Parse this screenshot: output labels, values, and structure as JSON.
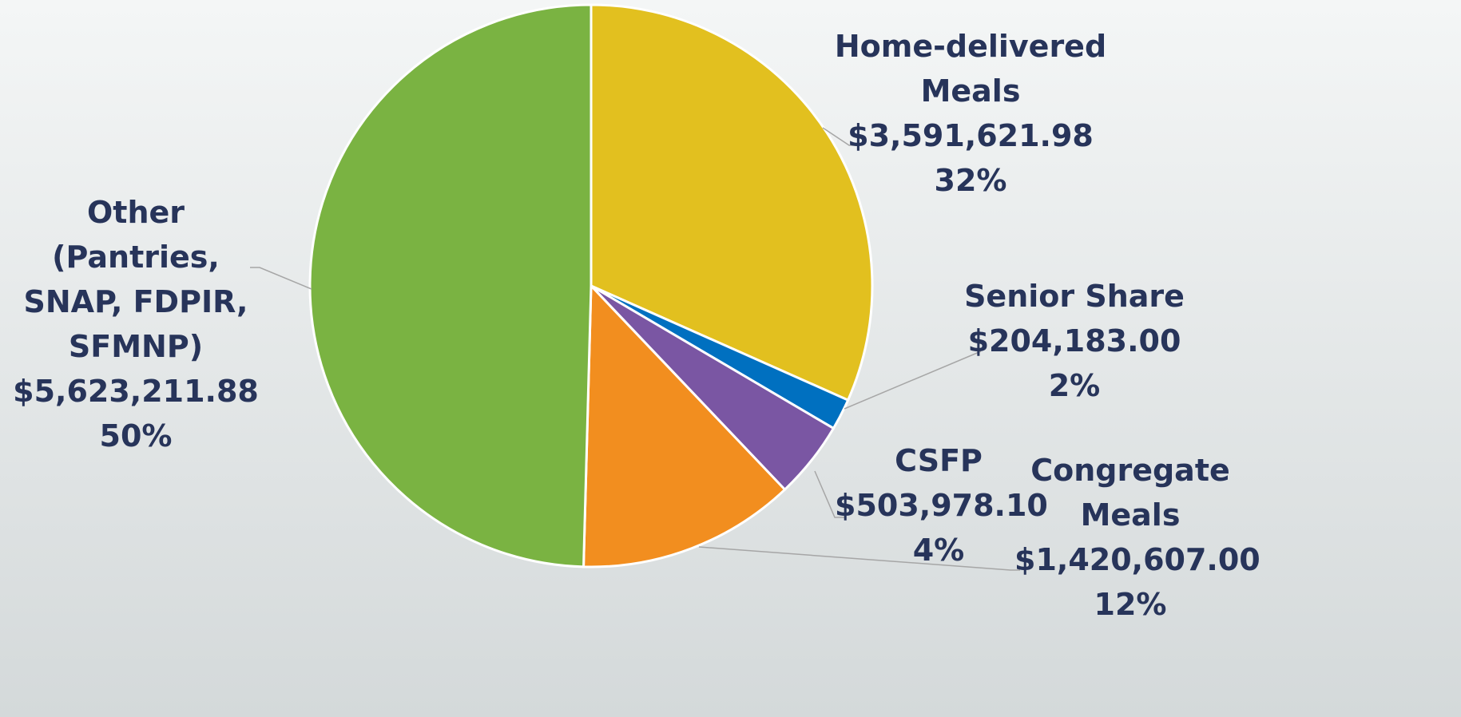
{
  "chart_data": {
    "type": "pie",
    "categories": [
      "Home-delivered Meals",
      "Senior Share",
      "CSFP",
      "Congregate Meals",
      "Other (Pantries, SNAP, FDPIR, SFMNP)"
    ],
    "values": [
      3591621.98,
      204183.0,
      503978.1,
      1420607.0,
      5623211.88
    ],
    "value_labels": [
      "$3,591,621.98",
      "$204,183.00",
      "$503,978.10",
      "$1,420,607.00",
      "$5,623,211.88"
    ],
    "percent_labels": [
      "32%",
      "2%",
      "4%",
      "12%",
      "50%"
    ],
    "colors": [
      "#e2c01f",
      "#0070c0",
      "#7a56a3",
      "#f28e1f",
      "#7ab342"
    ]
  }
}
